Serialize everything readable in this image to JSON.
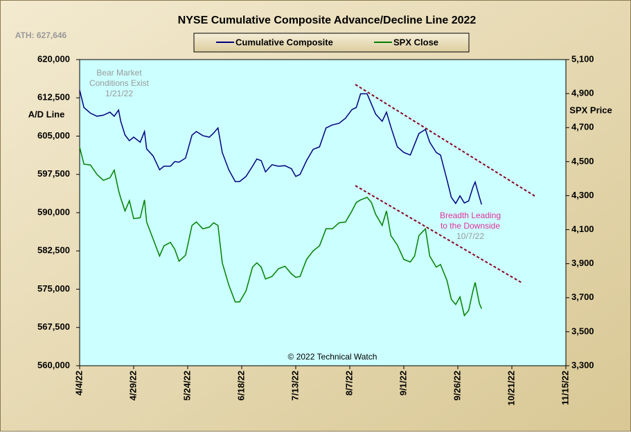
{
  "chart_data": {
    "type": "line",
    "title": "NYSE Cumulative  Composite  Advance/Decline  Line  2022",
    "note": "ATH: 627,646",
    "ylabel": "A/D Line",
    "y2label": "SPX Price",
    "credit": "© 2022 Technical  Watch",
    "annotations": [
      {
        "lines": [
          "Bear Market",
          "Conditions  Exist",
          "1/21/22"
        ]
      },
      {
        "lines": [
          "Breadth  Leading",
          "to the Downside",
          "10/7/22"
        ]
      }
    ],
    "x": [
      "4/4/22",
      "4/6/22",
      "4/9/22",
      "4/12/22",
      "4/15/22",
      "4/18/22",
      "4/20/22",
      "4/22/22",
      "4/23/22",
      "4/25/22",
      "4/27/22",
      "4/29/22",
      "5/2/22",
      "5/4/22",
      "5/5/22",
      "5/8/22",
      "5/11/22",
      "5/13/22",
      "5/16/22",
      "5/18/22",
      "5/20/22",
      "5/23/22",
      "5/26/22",
      "5/28/22",
      "5/31/22",
      "6/3/22",
      "6/5/22",
      "6/7/22",
      "6/9/22",
      "6/12/22",
      "6/15/22",
      "6/17/22",
      "6/20/22",
      "6/23/22",
      "6/25/22",
      "6/27/22",
      "6/29/22",
      "7/2/22",
      "7/5/22",
      "7/8/22",
      "7/11/22",
      "7/13/22",
      "7/15/22",
      "7/18/22",
      "7/21/22",
      "7/24/22",
      "7/27/22",
      "7/30/22",
      "8/2/22",
      "8/5/22",
      "8/8/22",
      "8/10/22",
      "8/12/22",
      "8/15/22",
      "8/17/22",
      "8/19/22",
      "8/22/22",
      "8/24/22",
      "8/26/22",
      "8/29/22",
      "9/1/22",
      "9/4/22",
      "9/6/22",
      "9/8/22",
      "9/11/22",
      "9/13/22",
      "9/16/22",
      "9/18/22",
      "9/21/22",
      "9/23/22",
      "9/25/22",
      "9/27/22",
      "9/29/22",
      "10/1/22",
      "10/3/22",
      "10/4/22",
      "10/6/22",
      "10/7/22"
    ],
    "series": [
      {
        "name": "Cumulative Composite",
        "color": "#000080",
        "axis": "y",
        "values": [
          614000,
          610600,
          609500,
          608900,
          609100,
          609700,
          608900,
          610100,
          607900,
          605200,
          604100,
          604800,
          603800,
          605900,
          602500,
          601100,
          598400,
          599100,
          599100,
          600000,
          599900,
          600700,
          605200,
          605900,
          605100,
          604800,
          605600,
          606600,
          601800,
          598400,
          596100,
          596100,
          597100,
          599100,
          600500,
          600200,
          598000,
          599400,
          599100,
          599200,
          598600,
          597100,
          597500,
          600200,
          602400,
          602900,
          606600,
          607200,
          607500,
          608500,
          610200,
          610600,
          613300,
          613300,
          611300,
          609300,
          607900,
          609700,
          606800,
          602900,
          601800,
          601300,
          603400,
          605500,
          606300,
          603800,
          601800,
          601300,
          596400,
          593000,
          591800,
          593300,
          591900,
          592300,
          595000,
          596000,
          593000,
          591600
        ]
      },
      {
        "name": "SPX Close",
        "color": "#008000",
        "axis": "y2",
        "values": [
          4585,
          4485,
          4480,
          4425,
          4390,
          4405,
          4450,
          4330,
          4285,
          4210,
          4270,
          4165,
          4170,
          4275,
          4145,
          4045,
          3945,
          4005,
          4025,
          3985,
          3915,
          3950,
          4125,
          4145,
          4105,
          4115,
          4140,
          4125,
          3905,
          3775,
          3675,
          3675,
          3740,
          3880,
          3905,
          3880,
          3810,
          3825,
          3870,
          3885,
          3840,
          3820,
          3825,
          3925,
          3975,
          4005,
          4105,
          4105,
          4140,
          4145,
          4210,
          4260,
          4275,
          4290,
          4260,
          4190,
          4125,
          4210,
          4065,
          4010,
          3925,
          3910,
          3945,
          4065,
          4105,
          3945,
          3880,
          3895,
          3800,
          3690,
          3660,
          3705,
          3595,
          3625,
          3740,
          3790,
          3665,
          3635
        ]
      }
    ],
    "xlim": [
      "4/4/22",
      "11/15/22"
    ],
    "xticks": [
      "4/4/22",
      "4/29/22",
      "5/24/22",
      "6/18/22",
      "7/13/22",
      "8/7/22",
      "9/1/22",
      "9/26/22",
      "10/21/22",
      "11/15/22"
    ],
    "ylim": [
      560000,
      620000
    ],
    "yticks": [
      {
        "value": 560000,
        "label": "560,000"
      },
      {
        "value": 567500,
        "label": "567,500"
      },
      {
        "value": 575000,
        "label": "575,000"
      },
      {
        "value": 582500,
        "label": "582,500"
      },
      {
        "value": 590000,
        "label": "590,000"
      },
      {
        "value": 597500,
        "label": "597,500"
      },
      {
        "value": 605000,
        "label": "605,000"
      },
      {
        "value": 612500,
        "label": "612,500"
      },
      {
        "value": 620000,
        "label": "620,000"
      }
    ],
    "y2lim": [
      3300,
      5100
    ],
    "y2ticks": [
      {
        "value": 3300,
        "label": "3,300"
      },
      {
        "value": 3500,
        "label": "3,500"
      },
      {
        "value": 3700,
        "label": "3,700"
      },
      {
        "value": 3900,
        "label": "3,900"
      },
      {
        "value": 4100,
        "label": "4,100"
      },
      {
        "value": 4300,
        "label": "4,300"
      },
      {
        "value": 4500,
        "label": "4,500"
      },
      {
        "value": 4700,
        "label": "4,700"
      },
      {
        "value": 4900,
        "label": "4,900"
      },
      {
        "value": 5100,
        "label": "5,100"
      }
    ],
    "grid": false,
    "legend": "top"
  }
}
